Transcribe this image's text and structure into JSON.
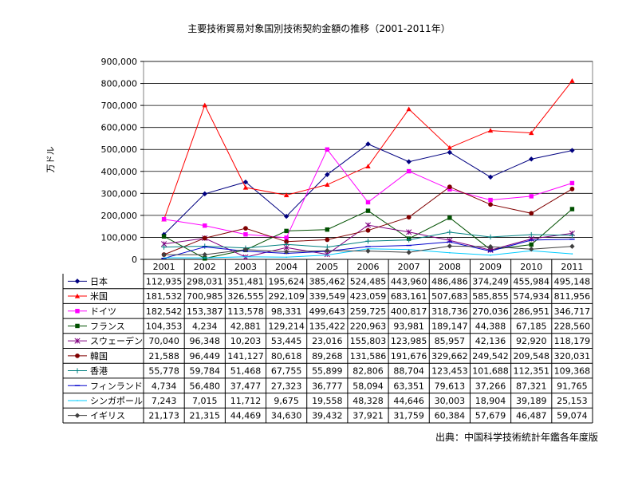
{
  "chart_data": {
    "type": "line",
    "title": "主要技術貿易対象国別技術契約金額の推移（2001-2011年）",
    "xlabel": "",
    "ylabel": "万ドル",
    "ylim": [
      0,
      900000
    ],
    "y_ticks": [
      "0",
      "100,000",
      "200,000",
      "300,000",
      "400,000",
      "500,000",
      "600,000",
      "700,000",
      "800,000",
      "900,000"
    ],
    "categories": [
      "2001",
      "2002",
      "2003",
      "2004",
      "2005",
      "2006",
      "2007",
      "2008",
      "2009",
      "2010",
      "2011"
    ],
    "grid": true,
    "legend": "data-table",
    "series": [
      {
        "name": "日本",
        "color": "#000080",
        "marker": "diamond",
        "values": [
          112935,
          298031,
          351481,
          195624,
          385462,
          524485,
          443960,
          486486,
          374249,
          455984,
          495148
        ],
        "labels": [
          "112,935",
          "298,031",
          "351,481",
          "195,624",
          "385,462",
          "524,485",
          "443,960",
          "486,486",
          "374,249",
          "455,984",
          "495,148"
        ]
      },
      {
        "name": "米国",
        "color": "#ff0000",
        "marker": "triangle",
        "values": [
          181532,
          700985,
          326555,
          292109,
          339549,
          423059,
          683161,
          507683,
          585855,
          574934,
          811956
        ],
        "labels": [
          "181,532",
          "700,985",
          "326,555",
          "292,109",
          "339,549",
          "423,059",
          "683,161",
          "507,683",
          "585,855",
          "574,934",
          "811,956"
        ]
      },
      {
        "name": "ドイツ",
        "color": "#ff00ff",
        "marker": "square",
        "values": [
          182542,
          153387,
          113578,
          98331,
          499643,
          259725,
          400817,
          318736,
          270036,
          286951,
          346717
        ],
        "labels": [
          "182,542",
          "153,387",
          "113,578",
          "98,331",
          "499,643",
          "259,725",
          "400,817",
          "318,736",
          "270,036",
          "286,951",
          "346,717"
        ]
      },
      {
        "name": "フランス",
        "color": "#005000",
        "marker": "square",
        "values": [
          104353,
          4234,
          42881,
          129214,
          135422,
          220963,
          93981,
          189147,
          44388,
          67185,
          228560
        ],
        "labels": [
          "104,353",
          "4,234",
          "42,881",
          "129,214",
          "135,422",
          "220,963",
          "93,981",
          "189,147",
          "44,388",
          "67,185",
          "228,560"
        ]
      },
      {
        "name": "スウェーデン",
        "color": "#800080",
        "marker": "asterisk",
        "values": [
          70040,
          96348,
          10203,
          53445,
          23016,
          155803,
          123985,
          85957,
          42136,
          92920,
          118179
        ],
        "labels": [
          "70,040",
          "96,348",
          "10,203",
          "53,445",
          "23,016",
          "155,803",
          "123,985",
          "85,957",
          "42,136",
          "92,920",
          "118,179"
        ]
      },
      {
        "name": "韓国",
        "color": "#800000",
        "marker": "circle",
        "values": [
          21588,
          96449,
          141127,
          80618,
          89268,
          131586,
          191676,
          329662,
          249542,
          209548,
          320031
        ],
        "labels": [
          "21,588",
          "96,449",
          "141,127",
          "80,618",
          "89,268",
          "131,586",
          "191,676",
          "329,662",
          "249,542",
          "209,548",
          "320,031"
        ]
      },
      {
        "name": "香港",
        "color": "#008080",
        "marker": "plus",
        "values": [
          55778,
          59784,
          51468,
          67755,
          55899,
          82806,
          88704,
          123453,
          101688,
          112351,
          109368
        ],
        "labels": [
          "55,778",
          "59,784",
          "51,468",
          "67,755",
          "55,899",
          "82,806",
          "88,704",
          "123,453",
          "101,688",
          "112,351",
          "109,368"
        ]
      },
      {
        "name": "フィンランド",
        "color": "#0000cc",
        "marker": "dash",
        "values": [
          4734,
          56480,
          37477,
          27323,
          36777,
          58094,
          63351,
          79613,
          37266,
          87321,
          91765
        ],
        "labels": [
          "4,734",
          "56,480",
          "37,477",
          "27,323",
          "36,777",
          "58,094",
          "63,351",
          "79,613",
          "37,266",
          "87,321",
          "91,765"
        ]
      },
      {
        "name": "シンガポール",
        "color": "#00ccff",
        "marker": "none",
        "values": [
          7243,
          7015,
          11712,
          9675,
          19558,
          48328,
          44646,
          30003,
          18904,
          39189,
          25153
        ],
        "labels": [
          "7,243",
          "7,015",
          "11,712",
          "9,675",
          "19,558",
          "48,328",
          "44,646",
          "30,003",
          "18,904",
          "39,189",
          "25,153"
        ]
      },
      {
        "name": "イギリス",
        "color": "#404040",
        "marker": "diamond",
        "values": [
          21173,
          21315,
          44469,
          34630,
          39432,
          37921,
          31759,
          60384,
          57679,
          46487,
          59074
        ],
        "labels": [
          "21,173",
          "21,315",
          "44,469",
          "34,630",
          "39,432",
          "37,921",
          "31,759",
          "60,384",
          "57,679",
          "46,487",
          "59,074"
        ]
      }
    ],
    "source": "出典：中国科学技術統計年鑑各年度版"
  }
}
